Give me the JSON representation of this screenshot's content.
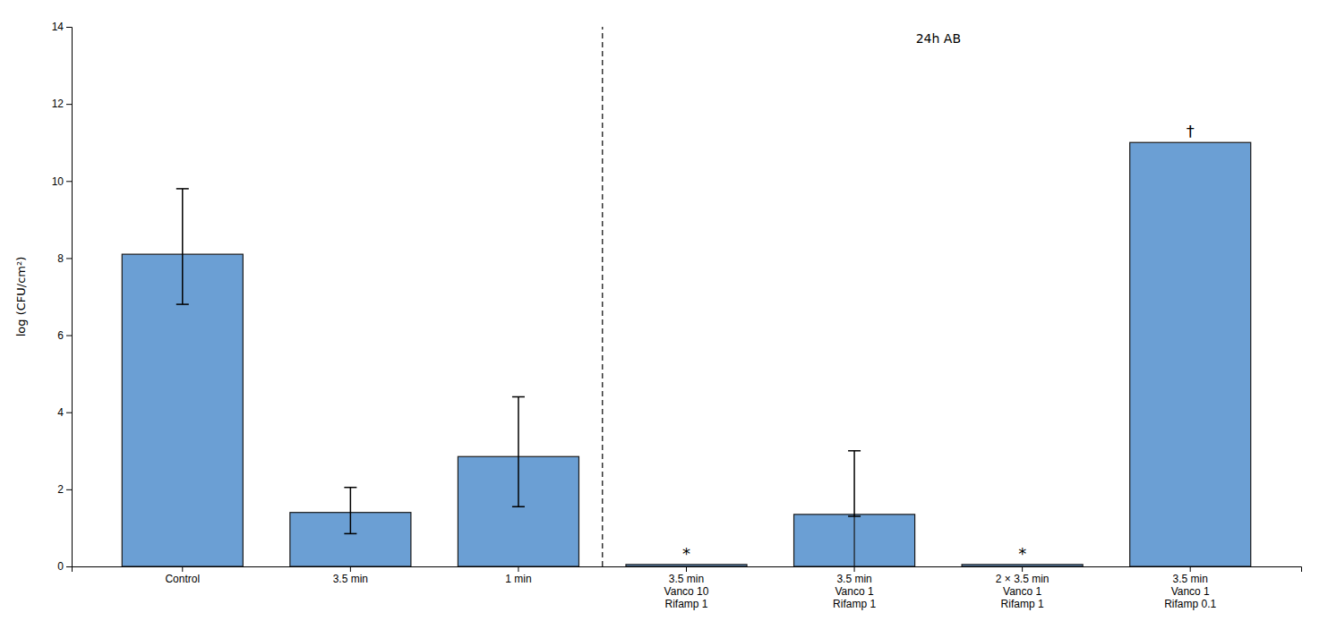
{
  "chart_data": {
    "type": "bar",
    "categories": [
      "Control",
      "3.5 min",
      "1 min",
      "3.5 min\nVanco 10\nRifamp 1",
      "3.5 min\nVanco 1\nRifamp 1",
      "2 × 3.5 min\nVanco 1\nRifamp 1",
      "3.5 min\nVanco 1\nRifamp 0.1"
    ],
    "values": [
      8.1,
      1.4,
      2.85,
      0.05,
      1.35,
      0.05,
      11.0
    ],
    "ci_lower": [
      1.3,
      0.55,
      1.3,
      0.0,
      0.05,
      0.0,
      0.0
    ],
    "ci_upper": [
      1.7,
      0.65,
      1.55,
      0.0,
      1.65,
      0.0,
      0.0
    ],
    "color": "#6b9fd4",
    "ylabel": "log (CFU/cm²)",
    "ylim": [
      0,
      14
    ],
    "yticks": [
      0,
      2,
      4,
      6,
      8,
      10,
      12,
      14
    ],
    "grid": false,
    "split_index": 4,
    "annotations": [
      {
        "text": "24h AB",
        "group_start": 3
      },
      {
        "text": "*",
        "index": 3
      },
      {
        "text": "*",
        "index": 5
      },
      {
        "text": "†",
        "index": 6
      }
    ]
  }
}
